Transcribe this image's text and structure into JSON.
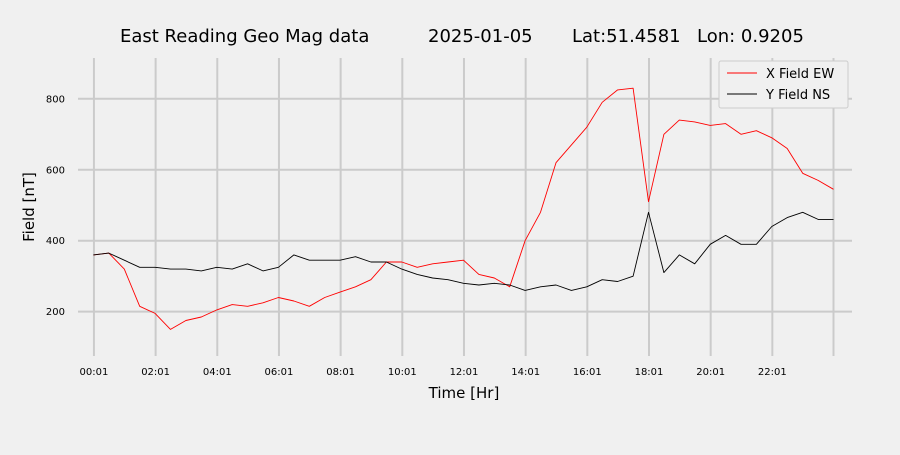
{
  "chart_data": {
    "type": "line",
    "title": {
      "text": "East Reading Geo Mag data",
      "date": "2025-01-05",
      "lat": "Lat:51.4581",
      "lon": "Lon: 0.9205"
    },
    "xlabel": "Time  [Hr]",
    "ylabel": "Field  [nT]",
    "xlim": [
      -0.5,
      24.6
    ],
    "ylim": [
      75,
      915
    ],
    "x_ticks": [
      {
        "value": 0.017,
        "label": "00:01"
      },
      {
        "value": 2.017,
        "label": "02:01"
      },
      {
        "value": 4.017,
        "label": "04:01"
      },
      {
        "value": 6.017,
        "label": "06:01"
      },
      {
        "value": 8.017,
        "label": "08:01"
      },
      {
        "value": 10.017,
        "label": "10:01"
      },
      {
        "value": 12.017,
        "label": "12:01"
      },
      {
        "value": 14.017,
        "label": "14:01"
      },
      {
        "value": 16.017,
        "label": "16:01"
      },
      {
        "value": 18.017,
        "label": "18:01"
      },
      {
        "value": 20.017,
        "label": "20:01"
      },
      {
        "value": 22.017,
        "label": "22:01"
      }
    ],
    "x_extra_gridlines": [
      24.0
    ],
    "y_ticks": [
      200,
      400,
      600,
      800
    ],
    "grid": true,
    "legend_position": "top-right",
    "x": [
      0,
      0.5,
      1.0,
      1.5,
      2.0,
      2.5,
      3.0,
      3.5,
      4.0,
      4.5,
      5.0,
      5.5,
      6.0,
      6.5,
      7.0,
      7.5,
      8.0,
      8.5,
      9.0,
      9.5,
      10.0,
      10.5,
      11.0,
      11.5,
      12.0,
      12.5,
      13.0,
      13.5,
      14.0,
      14.5,
      15.0,
      15.5,
      16.0,
      16.5,
      17.0,
      17.5,
      18.0,
      18.5,
      19.0,
      19.5,
      20.0,
      20.5,
      21.0,
      21.5,
      22.0,
      22.5,
      23.0,
      23.5,
      24.0
    ],
    "series": [
      {
        "name": "X Field EW",
        "color": "#ff0000",
        "values": [
          360,
          365,
          320,
          215,
          195,
          150,
          175,
          185,
          205,
          220,
          215,
          225,
          240,
          230,
          215,
          240,
          255,
          270,
          290,
          340,
          340,
          325,
          335,
          340,
          345,
          305,
          295,
          270,
          400,
          480,
          620,
          670,
          720,
          790,
          825,
          830,
          510,
          700,
          740,
          735,
          725,
          730,
          700,
          710,
          690,
          660,
          590,
          570,
          545
        ]
      },
      {
        "name": "Y Field NS",
        "color": "#000000",
        "values": [
          360,
          365,
          345,
          325,
          325,
          320,
          320,
          315,
          325,
          320,
          335,
          315,
          325,
          360,
          345,
          345,
          345,
          355,
          340,
          340,
          320,
          305,
          295,
          290,
          280,
          275,
          280,
          275,
          260,
          270,
          275,
          260,
          270,
          290,
          285,
          300,
          480,
          310,
          360,
          335,
          390,
          415,
          390,
          390,
          440,
          465,
          480,
          460,
          460
        ]
      }
    ]
  }
}
